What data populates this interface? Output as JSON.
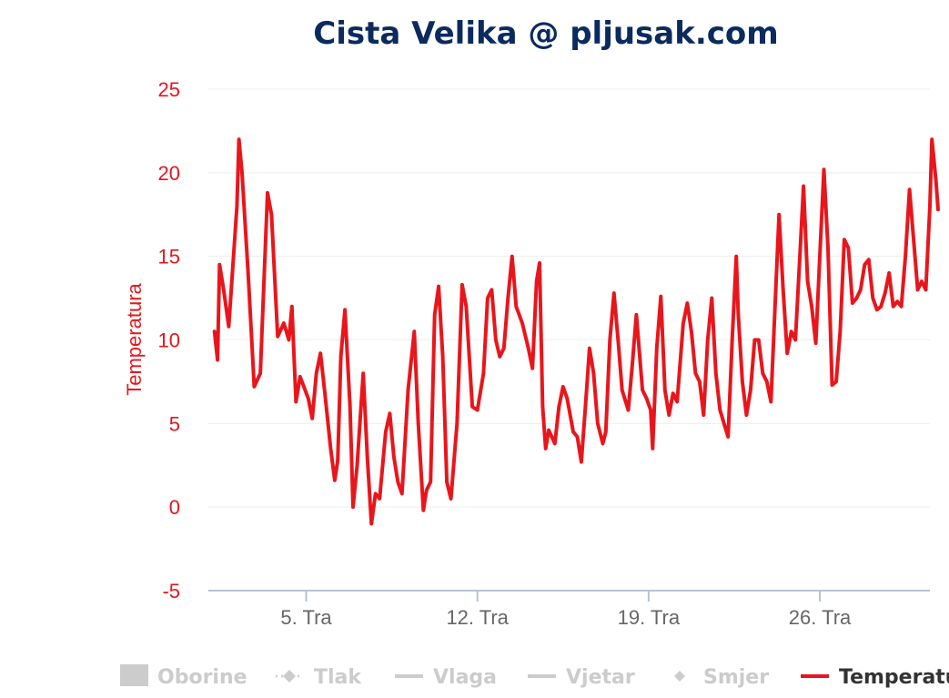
{
  "chart_data": {
    "type": "line",
    "title": "Cista Velika @ pljusak.com",
    "ylabel": "Temperatura",
    "xlabel": "",
    "ylim": [
      -5,
      25
    ],
    "yticks": [
      "25",
      "20",
      "15",
      "10",
      "5",
      "0",
      "-5"
    ],
    "xlim": [
      "2025-04-01",
      "2025-04-30T12:00"
    ],
    "xticks": [
      "5. Tra",
      "12. Tra",
      "19. Tra",
      "26. Tra"
    ],
    "grid": true,
    "legend_position": "bottom",
    "series": [
      {
        "name": "Temperatura",
        "color": "#e8161c",
        "visible": true,
        "points": [
          [
            "2025-04-01T06:00",
            10.5
          ],
          [
            "2025-04-01T09:00",
            8.8
          ],
          [
            "2025-04-01T11:00",
            14.5
          ],
          [
            "2025-04-01T15:00",
            13.0
          ],
          [
            "2025-04-01T20:00",
            10.8
          ],
          [
            "2025-04-02T04:00",
            18.0
          ],
          [
            "2025-04-02T06:00",
            22.0
          ],
          [
            "2025-04-02T09:00",
            20.0
          ],
          [
            "2025-04-02T15:00",
            14.0
          ],
          [
            "2025-04-02T21:00",
            7.2
          ],
          [
            "2025-04-03T03:00",
            8.0
          ],
          [
            "2025-04-03T10:00",
            18.8
          ],
          [
            "2025-04-03T14:00",
            17.5
          ],
          [
            "2025-04-03T20:00",
            10.2
          ],
          [
            "2025-04-04T02:00",
            11.0
          ],
          [
            "2025-04-04T07:00",
            10.0
          ],
          [
            "2025-04-04T10:00",
            12.0
          ],
          [
            "2025-04-04T14:00",
            6.3
          ],
          [
            "2025-04-04T18:00",
            7.8
          ],
          [
            "2025-04-05T02:00",
            6.5
          ],
          [
            "2025-04-05T06:00",
            5.3
          ],
          [
            "2025-04-05T10:00",
            8.0
          ],
          [
            "2025-04-05T14:00",
            9.2
          ],
          [
            "2025-04-05T18:00",
            7.0
          ],
          [
            "2025-04-06T00:00",
            3.5
          ],
          [
            "2025-04-06T04:00",
            1.6
          ],
          [
            "2025-04-06T07:00",
            2.8
          ],
          [
            "2025-04-06T10:00",
            9.0
          ],
          [
            "2025-04-06T14:00",
            11.8
          ],
          [
            "2025-04-06T19:00",
            6.0
          ],
          [
            "2025-04-06T22:00",
            0.0
          ],
          [
            "2025-04-07T02:00",
            2.5
          ],
          [
            "2025-04-07T08:00",
            8.0
          ],
          [
            "2025-04-07T12:00",
            3.0
          ],
          [
            "2025-04-07T16:00",
            -1.0
          ],
          [
            "2025-04-07T20:00",
            0.8
          ],
          [
            "2025-04-08T00:00",
            0.5
          ],
          [
            "2025-04-08T06:00",
            4.5
          ],
          [
            "2025-04-08T10:00",
            5.6
          ],
          [
            "2025-04-08T14:00",
            3.0
          ],
          [
            "2025-04-08T18:00",
            1.5
          ],
          [
            "2025-04-08T22:00",
            0.8
          ],
          [
            "2025-04-09T04:00",
            7.0
          ],
          [
            "2025-04-09T10:00",
            10.5
          ],
          [
            "2025-04-09T14:00",
            5.0
          ],
          [
            "2025-04-09T19:00",
            -0.2
          ],
          [
            "2025-04-09T22:00",
            1.0
          ],
          [
            "2025-04-10T02:00",
            1.5
          ],
          [
            "2025-04-10T06:00",
            11.5
          ],
          [
            "2025-04-10T10:00",
            13.2
          ],
          [
            "2025-04-10T14:00",
            9.0
          ],
          [
            "2025-04-10T18:00",
            1.5
          ],
          [
            "2025-04-10T22:00",
            0.5
          ],
          [
            "2025-04-11T04:00",
            5.0
          ],
          [
            "2025-04-11T09:00",
            13.3
          ],
          [
            "2025-04-11T13:00",
            12.0
          ],
          [
            "2025-04-11T19:00",
            6.0
          ],
          [
            "2025-04-12T00:00",
            5.8
          ],
          [
            "2025-04-12T06:00",
            8.0
          ],
          [
            "2025-04-12T10:00",
            12.5
          ],
          [
            "2025-04-12T14:00",
            13.0
          ],
          [
            "2025-04-12T18:00",
            10.0
          ],
          [
            "2025-04-12T22:00",
            9.0
          ],
          [
            "2025-04-13T02:00",
            9.5
          ],
          [
            "2025-04-13T06:00",
            12.5
          ],
          [
            "2025-04-13T10:00",
            15.0
          ],
          [
            "2025-04-13T14:00",
            12.0
          ],
          [
            "2025-04-13T20:00",
            11.0
          ],
          [
            "2025-04-14T02:00",
            9.5
          ],
          [
            "2025-04-14T06:00",
            8.3
          ],
          [
            "2025-04-14T10:00",
            13.5
          ],
          [
            "2025-04-14T13:00",
            14.6
          ],
          [
            "2025-04-14T16:00",
            6.0
          ],
          [
            "2025-04-14T19:00",
            3.5
          ],
          [
            "2025-04-14T22:00",
            4.6
          ],
          [
            "2025-04-15T04:00",
            3.8
          ],
          [
            "2025-04-15T08:00",
            6.0
          ],
          [
            "2025-04-15T12:00",
            7.2
          ],
          [
            "2025-04-15T16:00",
            6.5
          ],
          [
            "2025-04-15T22:00",
            4.5
          ],
          [
            "2025-04-16T02:00",
            4.2
          ],
          [
            "2025-04-16T06:00",
            2.7
          ],
          [
            "2025-04-16T10:00",
            6.0
          ],
          [
            "2025-04-16T14:00",
            9.5
          ],
          [
            "2025-04-16T18:00",
            8.0
          ],
          [
            "2025-04-16T22:00",
            5.0
          ],
          [
            "2025-04-17T03:00",
            3.8
          ],
          [
            "2025-04-17T06:00",
            4.5
          ],
          [
            "2025-04-17T10:00",
            10.0
          ],
          [
            "2025-04-17T14:00",
            12.8
          ],
          [
            "2025-04-17T18:00",
            10.0
          ],
          [
            "2025-04-17T22:00",
            7.0
          ],
          [
            "2025-04-18T04:00",
            5.8
          ],
          [
            "2025-04-18T08:00",
            8.5
          ],
          [
            "2025-04-18T12:00",
            11.5
          ],
          [
            "2025-04-18T18:00",
            7.0
          ],
          [
            "2025-04-18T22:00",
            6.5
          ],
          [
            "2025-04-19T02:00",
            5.8
          ],
          [
            "2025-04-19T04:00",
            3.5
          ],
          [
            "2025-04-19T08:00",
            9.5
          ],
          [
            "2025-04-19T12:00",
            12.6
          ],
          [
            "2025-04-19T16:00",
            7.0
          ],
          [
            "2025-04-19T20:00",
            5.5
          ],
          [
            "2025-04-20T00:00",
            6.8
          ],
          [
            "2025-04-20T04:00",
            6.3
          ],
          [
            "2025-04-20T10:00",
            11.0
          ],
          [
            "2025-04-20T14:00",
            12.2
          ],
          [
            "2025-04-20T18:00",
            10.5
          ],
          [
            "2025-04-20T22:00",
            8.0
          ],
          [
            "2025-04-21T02:00",
            7.5
          ],
          [
            "2025-04-21T06:00",
            5.5
          ],
          [
            "2025-04-21T10:00",
            10.0
          ],
          [
            "2025-04-21T14:00",
            12.5
          ],
          [
            "2025-04-21T18:00",
            8.0
          ],
          [
            "2025-04-21T22:00",
            5.8
          ],
          [
            "2025-04-22T02:00",
            5.0
          ],
          [
            "2025-04-22T06:00",
            4.2
          ],
          [
            "2025-04-22T10:00",
            10.0
          ],
          [
            "2025-04-22T14:00",
            15.0
          ],
          [
            "2025-04-22T16:00",
            11.5
          ],
          [
            "2025-04-22T20:00",
            7.5
          ],
          [
            "2025-04-23T00:00",
            5.5
          ],
          [
            "2025-04-23T04:00",
            7.0
          ],
          [
            "2025-04-23T08:00",
            10.0
          ],
          [
            "2025-04-23T12:00",
            10.0
          ],
          [
            "2025-04-23T16:00",
            8.0
          ],
          [
            "2025-04-23T20:00",
            7.5
          ],
          [
            "2025-04-24T00:00",
            6.3
          ],
          [
            "2025-04-24T04:00",
            12.0
          ],
          [
            "2025-04-24T08:00",
            17.5
          ],
          [
            "2025-04-24T12:00",
            13.0
          ],
          [
            "2025-04-24T16:00",
            9.2
          ],
          [
            "2025-04-24T20:00",
            10.5
          ],
          [
            "2025-04-25T00:00",
            10.0
          ],
          [
            "2025-04-25T04:00",
            14.5
          ],
          [
            "2025-04-25T08:00",
            19.2
          ],
          [
            "2025-04-25T12:00",
            13.5
          ],
          [
            "2025-04-25T16:00",
            12.0
          ],
          [
            "2025-04-25T20:00",
            9.8
          ],
          [
            "2025-04-26T00:00",
            15.0
          ],
          [
            "2025-04-26T04:00",
            20.2
          ],
          [
            "2025-04-26T08:00",
            15.5
          ],
          [
            "2025-04-26T12:00",
            7.3
          ],
          [
            "2025-04-26T16:00",
            7.5
          ],
          [
            "2025-04-26T20:00",
            10.5
          ],
          [
            "2025-04-27T00:00",
            16.0
          ],
          [
            "2025-04-27T04:00",
            15.5
          ],
          [
            "2025-04-27T08:00",
            12.2
          ],
          [
            "2025-04-27T12:00",
            12.5
          ],
          [
            "2025-04-27T16:00",
            13.0
          ],
          [
            "2025-04-27T20:00",
            14.5
          ],
          [
            "2025-04-28T00:00",
            14.8
          ],
          [
            "2025-04-28T04:00",
            12.5
          ],
          [
            "2025-04-28T08:00",
            11.8
          ],
          [
            "2025-04-28T12:00",
            12.0
          ],
          [
            "2025-04-28T16:00",
            12.8
          ],
          [
            "2025-04-28T20:00",
            14.0
          ],
          [
            "2025-04-29T00:00",
            12.0
          ],
          [
            "2025-04-29T04:00",
            12.3
          ],
          [
            "2025-04-29T08:00",
            12.0
          ],
          [
            "2025-04-29T12:00",
            15.0
          ],
          [
            "2025-04-29T16:00",
            19.0
          ],
          [
            "2025-04-29T20:00",
            16.0
          ],
          [
            "2025-04-30T00:00",
            13.0
          ],
          [
            "2025-04-30T04:00",
            13.5
          ],
          [
            "2025-04-30T08:00",
            13.0
          ],
          [
            "2025-04-30T12:00",
            18.0
          ],
          [
            "2025-04-30T14:00",
            22.0
          ],
          [
            "2025-04-30T18:00",
            19.5
          ],
          [
            "2025-04-30T20:00",
            17.8
          ]
        ]
      }
    ]
  },
  "legend": {
    "items": [
      {
        "label": "Oborine",
        "icon": "square-icon",
        "color": "#cccccc",
        "active": false
      },
      {
        "label": "Tlak",
        "icon": "dashed-diamond-icon",
        "color": "#cccccc",
        "active": false
      },
      {
        "label": "Vlaga",
        "icon": "line-icon",
        "color": "#cccccc",
        "active": false
      },
      {
        "label": "Vjetar",
        "icon": "line-icon",
        "color": "#cccccc",
        "active": false
      },
      {
        "label": "Smjer",
        "icon": "diamond-icon",
        "color": "#cccccc",
        "active": false
      },
      {
        "label": "Temperatura",
        "icon": "line-icon",
        "color": "#e8161c",
        "active": true
      }
    ]
  }
}
